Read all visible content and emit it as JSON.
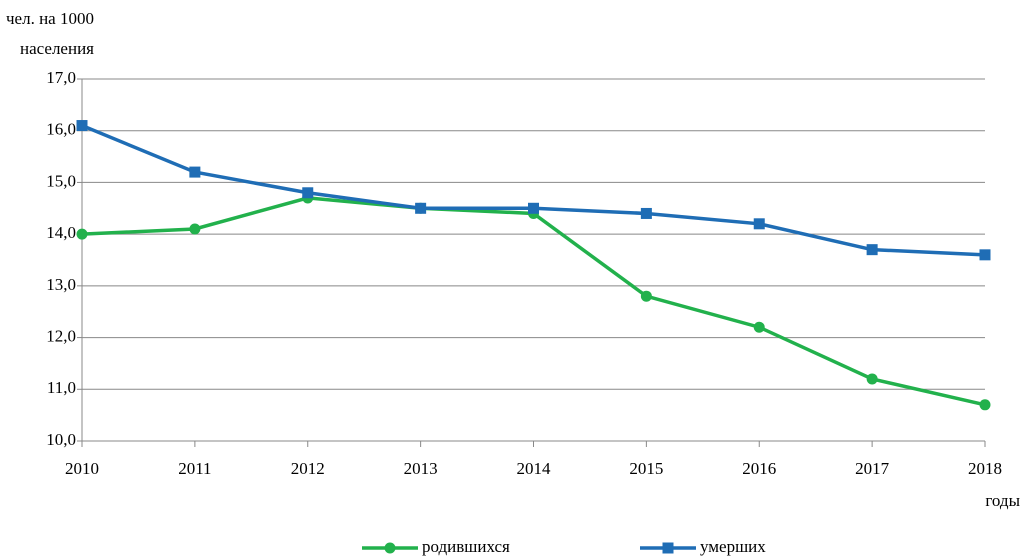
{
  "chart_data": {
    "type": "line",
    "y_label": [
      "чел. на 1000",
      "населения"
    ],
    "x_label": "годы",
    "x": [
      2010,
      2011,
      2012,
      2013,
      2014,
      2015,
      2016,
      2017,
      2018
    ],
    "xlim": [
      2010,
      2018
    ],
    "xticks": [
      2010,
      2011,
      2012,
      2013,
      2014,
      2015,
      2016,
      2017,
      2018
    ],
    "ylim": [
      10,
      17
    ],
    "yticks": [
      {
        "value": 10,
        "label": "10,0"
      },
      {
        "value": 11,
        "label": "11,0"
      },
      {
        "value": 12,
        "label": "12,0"
      },
      {
        "value": 13,
        "label": "13,0"
      },
      {
        "value": 14,
        "label": "14,0"
      },
      {
        "value": 15,
        "label": "15,0"
      },
      {
        "value": 16,
        "label": "16,0"
      },
      {
        "value": 17,
        "label": "17,0"
      }
    ],
    "grid": true,
    "legend": "bottom",
    "series": [
      {
        "name": "родившихся",
        "color": "#22b14c",
        "marker": "circle",
        "values": [
          14.0,
          14.1,
          14.7,
          14.5,
          14.4,
          12.8,
          12.2,
          11.2,
          10.7
        ]
      },
      {
        "name": "умерших",
        "color": "#1f6db5",
        "marker": "square",
        "values": [
          16.1,
          15.2,
          14.8,
          14.5,
          14.5,
          14.4,
          14.2,
          13.7,
          13.6
        ]
      }
    ]
  }
}
